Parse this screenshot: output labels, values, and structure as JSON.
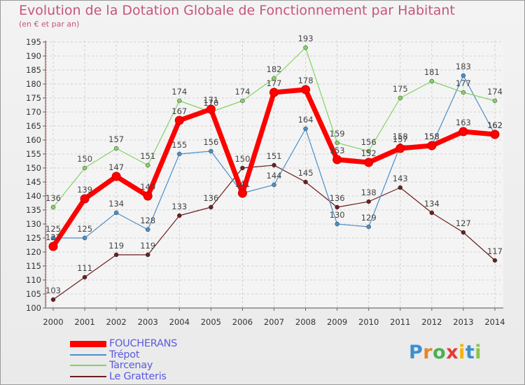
{
  "chart_data": {
    "type": "line",
    "title": "Evolution de la Dotation Globale de Fonctionnement par Habitant",
    "subtitle": "(en € et par an)",
    "xlabel": "",
    "ylabel": "",
    "ylim": [
      100,
      195
    ],
    "ytick_step": 5,
    "grid": true,
    "legend_position": "bottom-left",
    "categories": [
      "2000",
      "2001",
      "2002",
      "2003",
      "2004",
      "2005",
      "2006",
      "2007",
      "2008",
      "2009",
      "2010",
      "2011",
      "2012",
      "2013",
      "2014"
    ],
    "series": [
      {
        "name": "FOUCHERANS",
        "color": "#ff0000",
        "values": [
          122,
          139,
          147,
          140,
          167,
          171,
          141,
          177,
          178,
          153,
          152,
          157,
          158,
          163,
          162
        ]
      },
      {
        "name": "Trépot",
        "color": "#4a8fc8",
        "values": [
          125,
          125,
          134,
          128,
          155,
          156,
          141,
          144,
          164,
          130,
          129,
          158,
          158,
          183,
          162
        ]
      },
      {
        "name": "Tarcenay",
        "color": "#84d265",
        "values": [
          136,
          150,
          157,
          151,
          174,
          170,
          174,
          182,
          193,
          159,
          156,
          175,
          181,
          177,
          174
        ]
      },
      {
        "name": "Le Gratteris",
        "color": "#6b1f1f",
        "values": [
          103,
          111,
          119,
          119,
          133,
          136,
          150,
          151,
          145,
          136,
          138,
          143,
          134,
          127,
          117
        ]
      }
    ]
  },
  "logo": {
    "letters": [
      "P",
      "r",
      "o",
      "x",
      "i",
      "t",
      "i"
    ]
  }
}
